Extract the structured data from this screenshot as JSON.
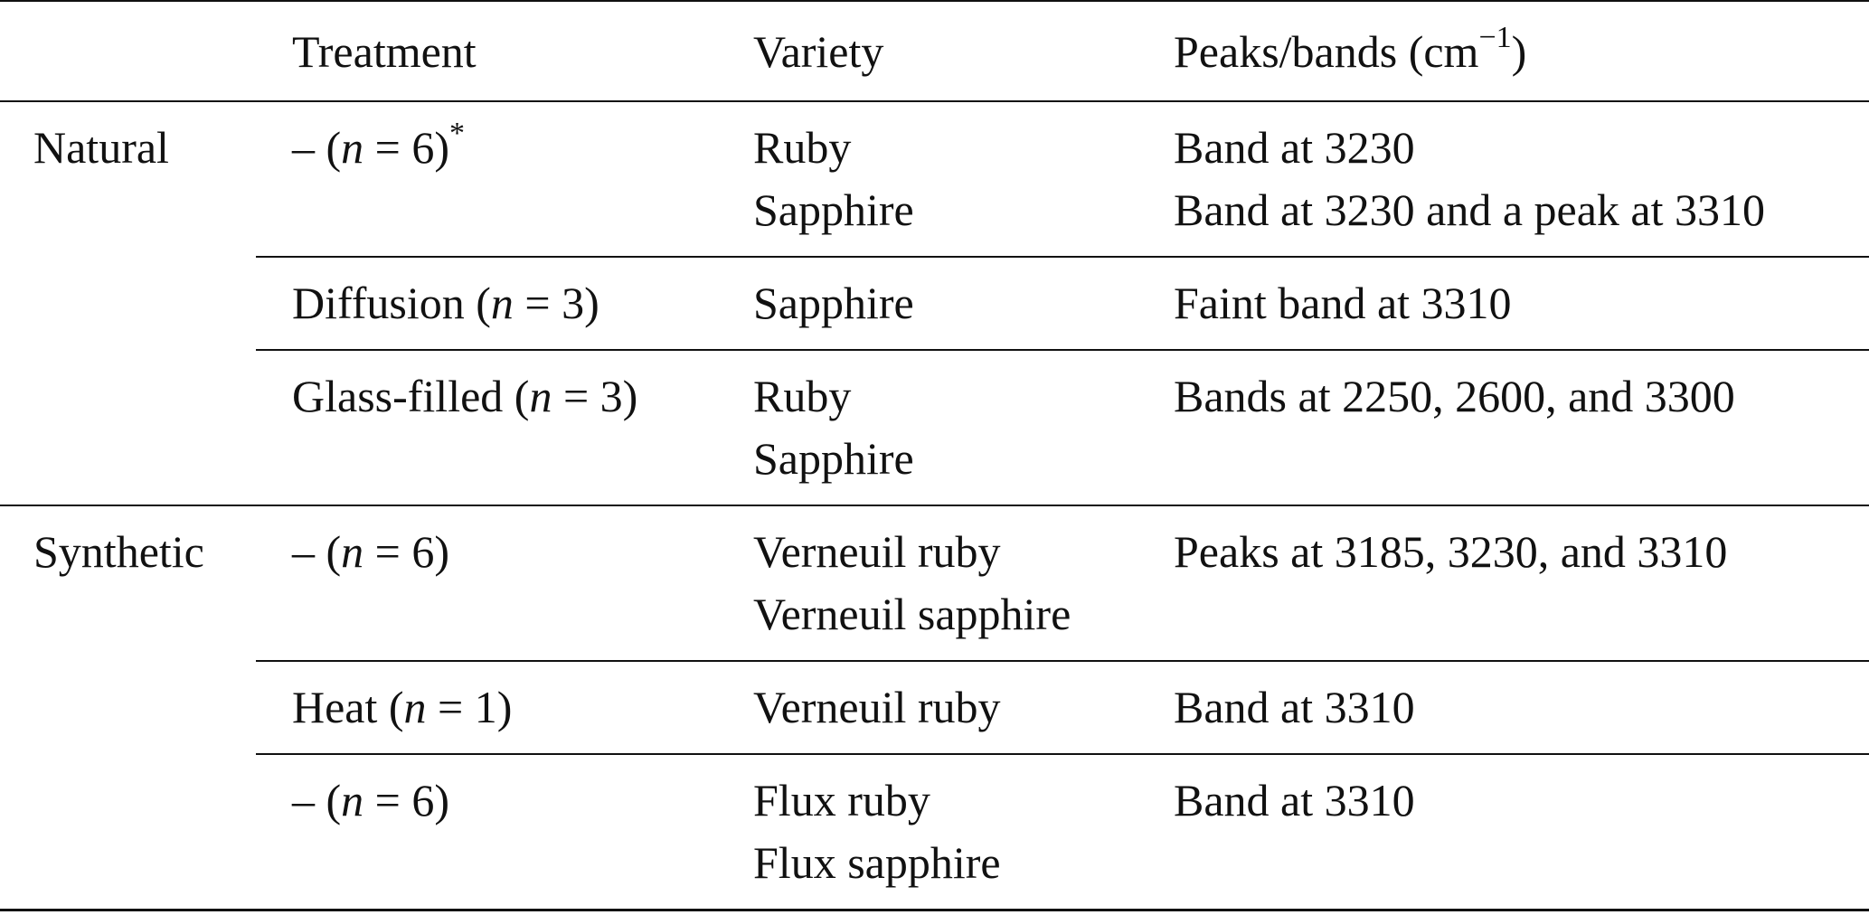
{
  "header": {
    "treatment": "Treatment",
    "variety": "Variety",
    "peaks": {
      "text": "Peaks/bands (cm",
      "sup": "−1",
      "close": ")"
    }
  },
  "groups": [
    {
      "name": "Natural",
      "rows": [
        {
          "treatment": {
            "prefix": "– (",
            "var": "n",
            "suffix": " = 6)",
            "note": "*"
          },
          "variety": [
            "Ruby",
            "Sapphire"
          ],
          "peaks": [
            "Band at 3230",
            "Band at 3230 and a peak at 3310"
          ]
        },
        {
          "treatment": {
            "prefix": "Diffusion (",
            "var": "n",
            "suffix": " = 3)"
          },
          "variety": [
            "Sapphire"
          ],
          "peaks": [
            "Faint band at 3310"
          ]
        },
        {
          "treatment": {
            "prefix": "Glass-filled (",
            "var": "n",
            "suffix": " = 3)"
          },
          "variety": [
            "Ruby",
            "Sapphire"
          ],
          "peaks": [
            "Bands at 2250, 2600, and 3300"
          ]
        }
      ]
    },
    {
      "name": "Synthetic",
      "rows": [
        {
          "treatment": {
            "prefix": "– (",
            "var": "n",
            "suffix": " = 6)"
          },
          "variety": [
            "Verneuil ruby",
            "Verneuil sapphire"
          ],
          "peaks": [
            "Peaks at 3185, 3230, and 3310"
          ]
        },
        {
          "treatment": {
            "prefix": "Heat (",
            "var": "n",
            "suffix": " = 1)"
          },
          "variety": [
            "Verneuil ruby"
          ],
          "peaks": [
            "Band at 3310"
          ]
        },
        {
          "treatment": {
            "prefix": "– (",
            "var": "n",
            "suffix": " = 6)"
          },
          "variety": [
            "Flux ruby",
            "Flux sapphire"
          ],
          "peaks": [
            "Band at 3310"
          ]
        }
      ]
    }
  ]
}
